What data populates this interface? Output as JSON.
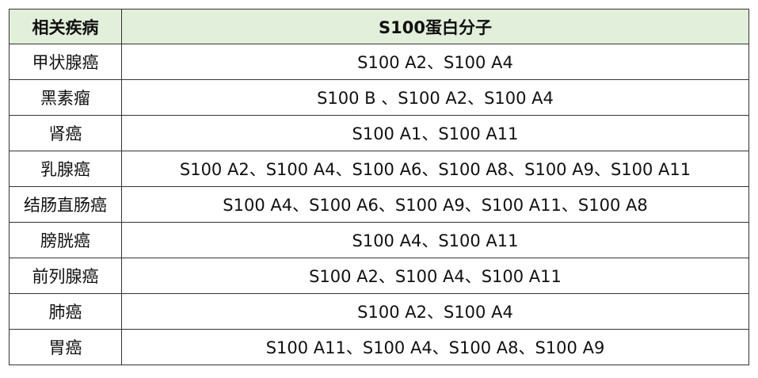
{
  "table": {
    "headers": [
      "相关疾病",
      "S100蛋白分子"
    ],
    "rows": [
      [
        "甲状腺癌",
        "S100 A2、S100 A4"
      ],
      [
        "黑素瘤",
        "S100 B 、S100 A2、S100 A4"
      ],
      [
        "肾癌",
        "S100 A1、S100 A11"
      ],
      [
        "乳腺癌",
        "S100 A2、S100 A4、S100 A6、S100 A8、S100 A9、S100 A11"
      ],
      [
        "结肠直肠癌",
        "S100 A4、S100 A6、S100 A9、S100 A11、S100 A8"
      ],
      [
        "膀胱癌",
        "S100 A4、S100 A11"
      ],
      [
        "前列腺癌",
        "S100 A2、S100 A4、S100 A11"
      ],
      [
        "肺癌",
        "S100 A2、S100 A4"
      ],
      [
        "胃癌",
        "S100 A11、S100 A4、S100 A8、S100 A9"
      ]
    ],
    "header_bg": "#e2efda"
  }
}
